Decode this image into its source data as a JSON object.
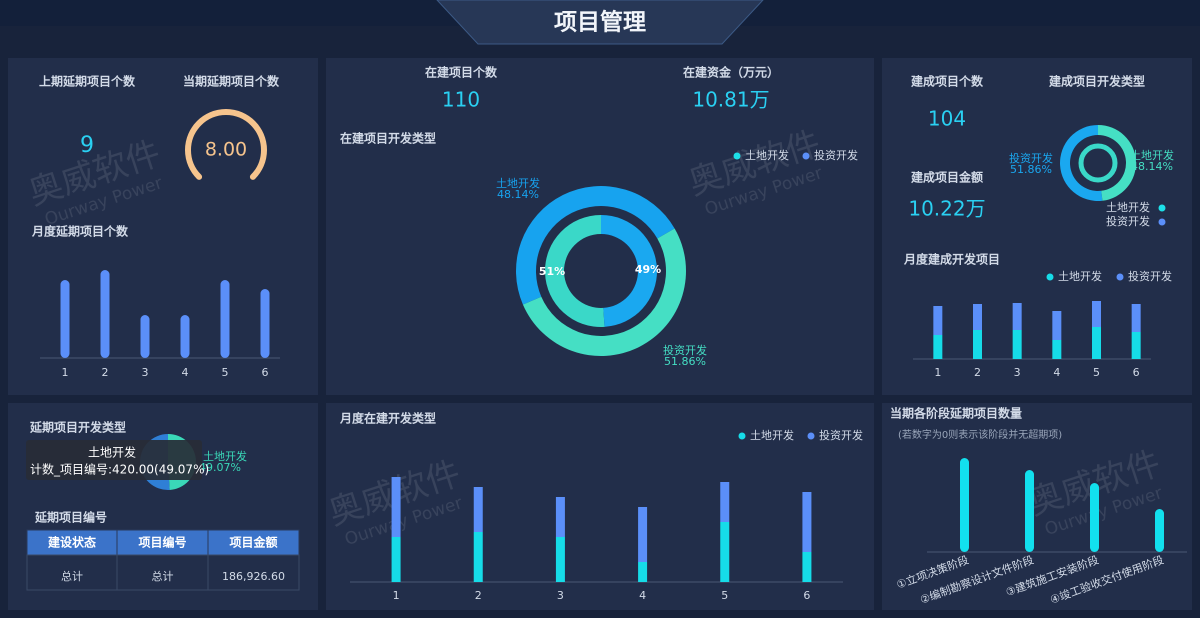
{
  "header": {
    "title": "项目管理"
  },
  "watermark": {
    "brand": "奥威软件",
    "sub": "Ourway Power"
  },
  "kpis": [
    {
      "label": "上期延期项目个数",
      "value": 9
    },
    {
      "label": "当期延期项目个数",
      "value": "8.00"
    },
    {
      "label": "在建项目个数",
      "value": 110
    },
    {
      "label": "在建资金（万元）",
      "value": "10.81万"
    },
    {
      "label": "建成项目个数",
      "value": 104
    },
    {
      "label": "建成项目金额",
      "value": "10.22万"
    }
  ],
  "tooltip": {
    "title": "土地开发",
    "text": "计数_项目编号:420.00(49.07%)"
  },
  "table": {
    "title": "延期项目编号",
    "columns": [
      "建设状态",
      "项目编号",
      "项目金额"
    ],
    "rows": [
      [
        "总计",
        "总计",
        "186,926.60"
      ]
    ]
  },
  "chart_data": [
    {
      "type": "bar",
      "title": "月度延期项目个数",
      "categories": [
        "1",
        "2",
        "3",
        "4",
        "5",
        "6"
      ],
      "values": [
        78,
        88,
        43,
        43,
        78,
        69
      ],
      "color": "#5b8ff9",
      "ylim": [
        0,
        100
      ]
    },
    {
      "type": "donut",
      "title": "在建项目开发类型",
      "legend": [
        {
          "name": "土地开发",
          "color": "#1de0e8"
        },
        {
          "name": "投资开发",
          "color": "#5b8ff9"
        }
      ],
      "rings": [
        {
          "categories": [
            "土地开发",
            "投资开发"
          ],
          "values": [
            48.14,
            51.86
          ],
          "value_labels": [
            "48.14%",
            "51.86%"
          ],
          "colors": [
            "#17a3ef",
            "#45dfc4"
          ]
        },
        {
          "categories": [
            null,
            null
          ],
          "values": [
            51,
            49
          ],
          "value_labels": [
            "51%",
            "49%"
          ],
          "colors": [
            "#3ad8c8",
            "#1aa8f0"
          ]
        }
      ]
    },
    {
      "type": "donut",
      "title": "建成项目开发类型",
      "legend": [
        {
          "name": "土地开发",
          "color": "#1de0e8"
        },
        {
          "name": "投资开发",
          "color": "#5b8ff9"
        }
      ],
      "rings": [
        {
          "categories": [
            "投资开发",
            "土地开发"
          ],
          "values": [
            51.86,
            48.14
          ],
          "value_labels": [
            "51.86%",
            "48.14%"
          ],
          "colors": [
            "#1aa8f0",
            "#45dfc4"
          ]
        }
      ]
    },
    {
      "type": "stacked-bar",
      "title": "月度建成开发项目",
      "categories": [
        "1",
        "2",
        "3",
        "4",
        "5",
        "6"
      ],
      "series": [
        {
          "name": "土地开发",
          "color": "#16dce8",
          "values": [
            24,
            29,
            29,
            19,
            32,
            27
          ]
        },
        {
          "name": "投资开发",
          "color": "#5b8ff9",
          "values": [
            29,
            26,
            27,
            29,
            26,
            28
          ]
        }
      ],
      "ylim": [
        0,
        60
      ]
    },
    {
      "type": "pie",
      "title": "延期项目开发类型",
      "categories": [
        "土地开发",
        null
      ],
      "values": [
        49.07,
        50.93
      ],
      "value_labels": [
        "49.07%",
        null
      ],
      "colors": [
        "#3ad8b8",
        "#2f7fd6"
      ]
    },
    {
      "type": "stacked-bar",
      "title": "月度在建开发类型",
      "categories": [
        "1",
        "2",
        "3",
        "4",
        "5",
        "6"
      ],
      "series": [
        {
          "name": "土地开发",
          "color": "#16dce8",
          "values": [
            45,
            50,
            45,
            20,
            60,
            30
          ]
        },
        {
          "name": "投资开发",
          "color": "#5b8ff9",
          "values": [
            60,
            45,
            40,
            55,
            40,
            60
          ]
        }
      ],
      "ylim": [
        0,
        120
      ]
    },
    {
      "type": "bar",
      "title": "当期各阶段延期项目数量",
      "subtitle": "(若数字为0则表示该阶段并无超期项)",
      "categories": [
        "①立项决策阶段",
        "②编制勘察设计文件阶段",
        "③建筑施工安装阶段",
        "④竣工验收交付使用阶段"
      ],
      "values": [
        94,
        82,
        69,
        43
      ],
      "color": "#12e0ee",
      "ylim": [
        0,
        100
      ]
    }
  ]
}
